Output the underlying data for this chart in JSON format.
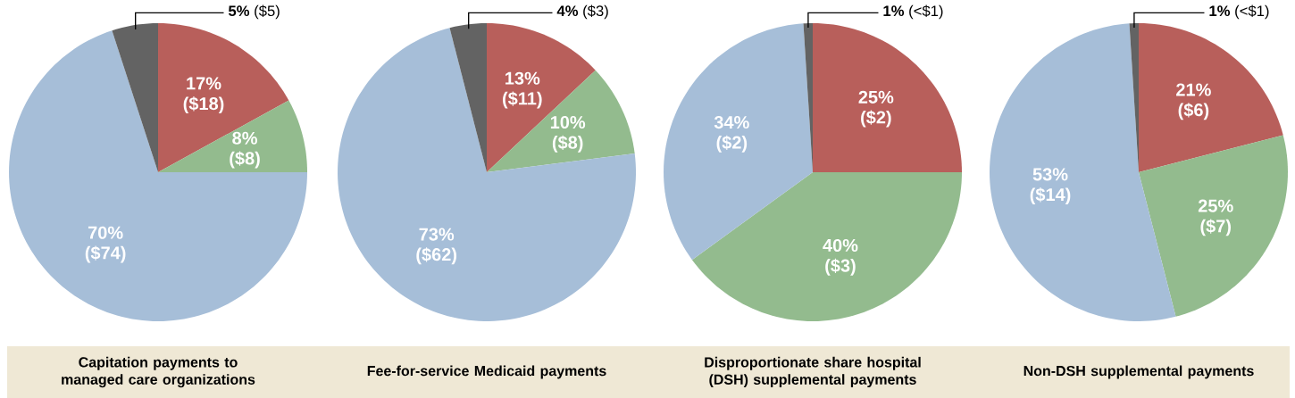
{
  "chart_data": [
    {
      "type": "pie",
      "title": "Capitation payments to managed care organizations",
      "categories": [
        null,
        null,
        null,
        null
      ],
      "values": [
        17,
        8,
        70,
        5
      ],
      "colors": [
        "#b85f5b",
        "#93bb8e",
        "#a6bed8",
        "#636363"
      ],
      "value_labels": [
        "17% ($18)",
        "8% ($8)",
        "70% ($74)",
        "**5%** ($5)"
      ]
    },
    {
      "type": "pie",
      "title": "Fee-for-service Medicaid payments",
      "categories": [
        null,
        null,
        null,
        null
      ],
      "values": [
        13,
        10,
        73,
        4
      ],
      "colors": [
        "#b85f5b",
        "#93bb8e",
        "#a6bed8",
        "#636363"
      ],
      "value_labels": [
        "13% ($11)",
        "10% ($8)",
        "73% ($62)",
        "**4%** ($3)"
      ]
    },
    {
      "type": "pie",
      "title": "Disproportionate share hospital (DSH) supplemental payments",
      "categories": [
        null,
        null,
        null,
        null
      ],
      "values": [
        25,
        40,
        34,
        1
      ],
      "colors": [
        "#b85f5b",
        "#93bb8e",
        "#a6bed8",
        "#636363"
      ],
      "value_labels": [
        "25% ($2)",
        "40% ($3)",
        "34% ($2)",
        "**1%** (<$1)"
      ]
    },
    {
      "type": "pie",
      "title": "Non-DSH supplemental payments",
      "categories": [
        null,
        null,
        null,
        null
      ],
      "values": [
        21,
        25,
        53,
        1
      ],
      "colors": [
        "#b85f5b",
        "#93bb8e",
        "#a6bed8",
        "#636363"
      ],
      "value_labels": [
        "21% ($6)",
        "25% ($7)",
        "53% ($14)",
        "**1%** (<$1)"
      ]
    }
  ]
}
